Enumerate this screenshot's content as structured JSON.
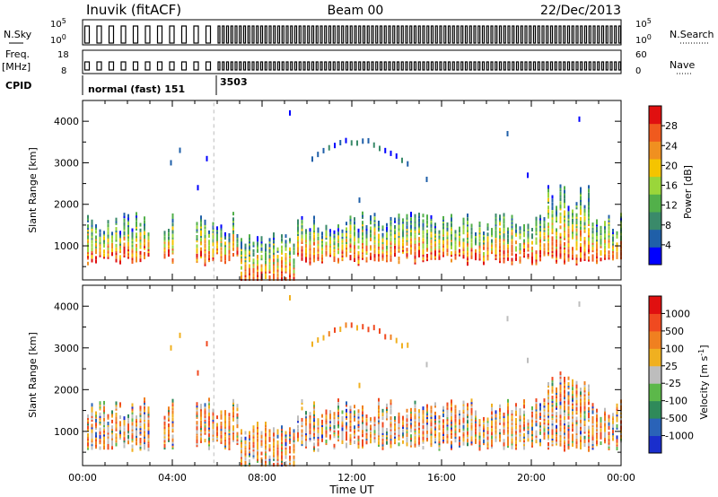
{
  "header": {
    "station": "Inuvik (fitACF)",
    "beam": "Beam 00",
    "date": "22/Dec/2013"
  },
  "nsky_panel": {
    "left_label": "N.Sky",
    "left_ticks": [
      "10^5",
      "10^0"
    ],
    "right_ticks": [
      "10^5",
      "10^0"
    ],
    "right_label": "N.Search"
  },
  "freq_panel": {
    "left_label_1": "Freq.",
    "left_label_2": "[MHz]",
    "left_ticks": [
      "18",
      "8"
    ],
    "right_ticks": [
      "60",
      "0"
    ],
    "right_label": "Nave"
  },
  "cpid": {
    "label": "CPID",
    "modes": [
      "normal (fast) 151",
      "3503"
    ]
  },
  "colors": {
    "power_scale": [
      "#0000ff",
      "#1f5fa8",
      "#3a8a6a",
      "#52b04a",
      "#9ad63a",
      "#f5c400",
      "#f09020",
      "#f05a1e",
      "#e01010"
    ],
    "velocity_scale": [
      "#1a2ecc",
      "#2a63b8",
      "#2f8a5a",
      "#5cb84a",
      "#bdbdbd",
      "#f0b020",
      "#f08020",
      "#f04a20",
      "#e01010"
    ]
  },
  "chart_data": [
    {
      "type": "heatmap",
      "title": "Power",
      "ylabel": "Slant Range [km]",
      "xlabel": "",
      "ylim": [
        180,
        4500
      ],
      "yticks": [
        "1000",
        "2000",
        "3000",
        "4000"
      ],
      "colorbar_label": "Power [dB]",
      "colorbar_ticks": [
        "4",
        "8",
        "12",
        "16",
        "20",
        "24",
        "28"
      ],
      "colorbar_range": [
        0,
        32
      ]
    },
    {
      "type": "heatmap",
      "title": "Velocity",
      "ylabel": "Slant Range [km]",
      "xlabel": "Time UT",
      "ylim": [
        180,
        4500
      ],
      "yticks": [
        "1000",
        "2000",
        "3000",
        "4000"
      ],
      "xticks": [
        "00:00",
        "04:00",
        "08:00",
        "12:00",
        "16:00",
        "20:00",
        "00:00"
      ],
      "xrange_hours": [
        0,
        24
      ],
      "colorbar_label": "Velocity [m s^-1]",
      "colorbar_ticks": [
        "1000",
        "500",
        "100",
        "25",
        "-25",
        "-100",
        "-500",
        "-1000"
      ]
    }
  ]
}
